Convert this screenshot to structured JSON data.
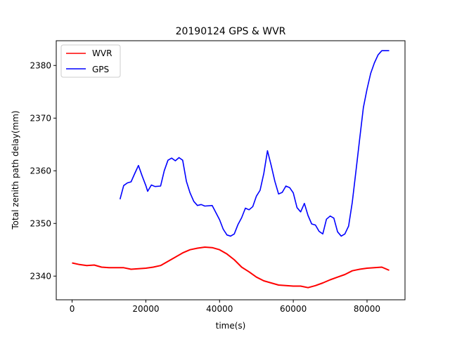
{
  "chart_data": {
    "type": "line",
    "title": "20190124 GPS & WVR",
    "xlabel": "time(s)",
    "ylabel": "Total zenith path delay(mm)",
    "xlim": [
      -4300,
      90300
    ],
    "ylim": [
      2335.5,
      2384.7
    ],
    "xticks": [
      0,
      20000,
      40000,
      60000,
      80000
    ],
    "yticks": [
      2340,
      2350,
      2360,
      2370,
      2380
    ],
    "grid": false,
    "legend_position": "top-left",
    "series": [
      {
        "name": "WVR",
        "color": "#ff0000",
        "x": [
          0,
          2000,
          4000,
          6000,
          8000,
          10000,
          12000,
          14000,
          16000,
          18000,
          20000,
          22000,
          24000,
          26000,
          28000,
          30000,
          32000,
          34000,
          36000,
          38000,
          40000,
          42000,
          44000,
          46000,
          48000,
          50000,
          52000,
          54000,
          56000,
          58000,
          60000,
          62000,
          64000,
          66000,
          68000,
          70000,
          72000,
          74000,
          76000,
          78000,
          80000,
          82000,
          84000,
          86000
        ],
        "y": [
          2342.5,
          2342.2,
          2342.0,
          2342.1,
          2341.7,
          2341.6,
          2341.6,
          2341.6,
          2341.3,
          2341.4,
          2341.5,
          2341.7,
          2342.0,
          2342.8,
          2343.6,
          2344.4,
          2345.0,
          2345.3,
          2345.5,
          2345.4,
          2345.0,
          2344.2,
          2343.1,
          2341.7,
          2340.8,
          2339.8,
          2339.1,
          2338.7,
          2338.3,
          2338.2,
          2338.1,
          2338.1,
          2337.8,
          2338.2,
          2338.7,
          2339.3,
          2339.8,
          2340.3,
          2341.0,
          2341.3,
          2341.5,
          2341.6,
          2341.7,
          2341.1
        ]
      },
      {
        "name": "GPS",
        "color": "#0000ff",
        "x": [
          13000,
          14000,
          15000,
          16000,
          17000,
          18000,
          19000,
          20000,
          20500,
          21500,
          22500,
          24000,
          25000,
          26000,
          27000,
          28000,
          29000,
          30000,
          31000,
          32000,
          33000,
          34000,
          35000,
          36000,
          38000,
          40000,
          41000,
          42000,
          43000,
          44000,
          45000,
          46000,
          47000,
          48000,
          49000,
          50000,
          51000,
          52000,
          53000,
          54000,
          55000,
          56000,
          57000,
          58000,
          59000,
          60000,
          61000,
          62000,
          63000,
          64000,
          65000,
          66000,
          67000,
          68000,
          69000,
          70000,
          71000,
          72000,
          73000,
          74000,
          75000,
          76000,
          77000,
          78000,
          79000,
          80000,
          81000,
          82000,
          83000,
          84000,
          85000,
          86000
        ],
        "y": [
          2354.6,
          2357.2,
          2357.7,
          2357.9,
          2359.5,
          2361.0,
          2359.0,
          2357.2,
          2356.1,
          2357.3,
          2357.0,
          2357.1,
          2360.0,
          2362.0,
          2362.4,
          2361.9,
          2362.5,
          2362.0,
          2358.0,
          2355.8,
          2354.2,
          2353.4,
          2353.6,
          2353.3,
          2353.4,
          2350.7,
          2348.9,
          2347.8,
          2347.6,
          2348.0,
          2349.8,
          2351.1,
          2352.9,
          2352.6,
          2353.2,
          2355.2,
          2356.3,
          2359.5,
          2363.8,
          2361.0,
          2358.0,
          2355.6,
          2355.9,
          2357.1,
          2356.8,
          2355.8,
          2353.0,
          2352.2,
          2353.8,
          2351.5,
          2349.9,
          2349.7,
          2348.5,
          2348.0,
          2350.8,
          2351.4,
          2351.0,
          2348.4,
          2347.6,
          2348.0,
          2349.5,
          2354.0,
          2360.0,
          2366.0,
          2372.0,
          2375.5,
          2378.5,
          2380.5,
          2382.0,
          2382.8,
          2382.8,
          2382.8
        ]
      }
    ]
  }
}
